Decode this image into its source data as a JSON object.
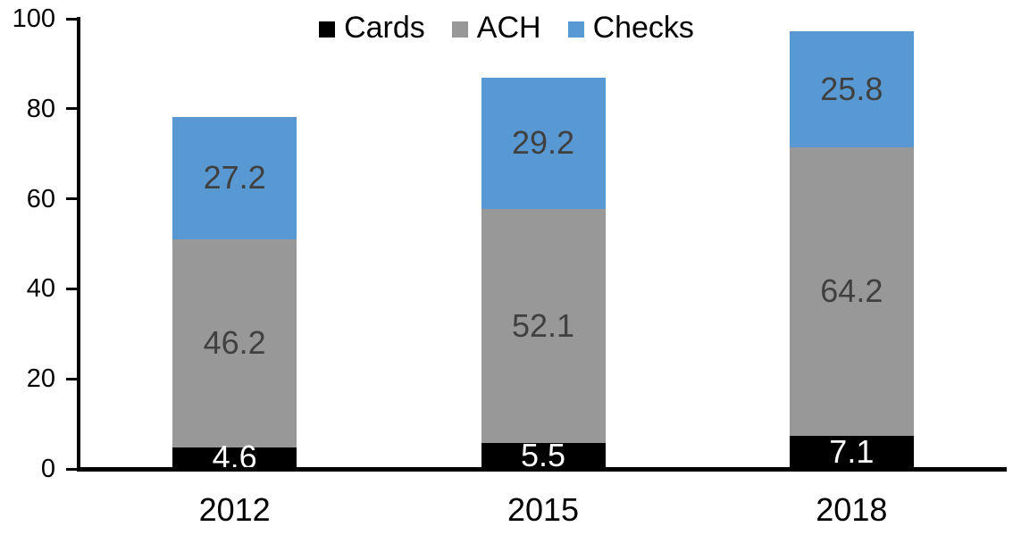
{
  "chart_data": {
    "type": "bar",
    "stacked": true,
    "title": "",
    "xlabel": "",
    "ylabel": "",
    "categories": [
      "2012",
      "2015",
      "2018"
    ],
    "series": [
      {
        "name": "Cards",
        "color": "#000000",
        "label_color": "#ffffff",
        "values": [
          4.6,
          5.5,
          7.1
        ]
      },
      {
        "name": "ACH",
        "color": "#989898",
        "label_color": "#404040",
        "values": [
          46.2,
          52.1,
          64.2
        ]
      },
      {
        "name": "Checks",
        "color": "#5899D3",
        "label_color": "#404040",
        "values": [
          27.2,
          29.2,
          25.8
        ]
      }
    ],
    "stack_totals": [
      78.0,
      86.8,
      97.1
    ],
    "ylim": [
      0,
      100
    ],
    "yticks": [
      0,
      20,
      40,
      60,
      80,
      100
    ],
    "grid": false,
    "legend": {
      "position": "top-center",
      "labels": [
        "Cards",
        "ACH",
        "Checks"
      ]
    },
    "axis_color": "#000000",
    "value_decimals": 1
  }
}
